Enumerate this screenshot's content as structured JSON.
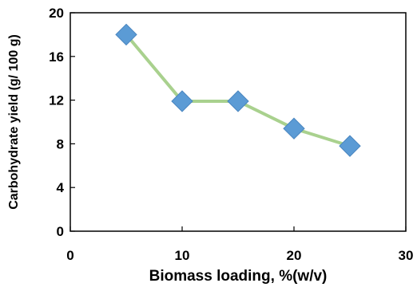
{
  "chart_data": {
    "type": "line",
    "title": "",
    "xlabel": "Biomass loading, %(w/v)",
    "ylabel": "Carbohydrate yield (g/ 100 g)",
    "xlim": [
      0,
      30
    ],
    "ylim": [
      0,
      20
    ],
    "xticks": [
      0,
      10,
      20,
      30
    ],
    "yticks": [
      0,
      4,
      8,
      12,
      16,
      20
    ],
    "grid": false,
    "legend": "none",
    "series": [
      {
        "x": [
          5,
          10,
          15,
          20,
          25
        ],
        "y": [
          18.0,
          11.9,
          11.9,
          9.4,
          7.8
        ],
        "line_color": "#a9d18e",
        "marker": "diamond",
        "marker_color": "#5b9bd5"
      }
    ]
  }
}
